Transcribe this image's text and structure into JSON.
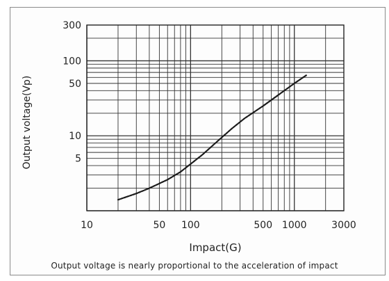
{
  "chart_data": {
    "type": "line",
    "title": "",
    "xlabel": "Impact(G)",
    "ylabel": "Output voltage(Vp)",
    "xscale": "log",
    "yscale": "log",
    "xlim": [
      10,
      3000
    ],
    "ylim": [
      1,
      300
    ],
    "x_ticks": [
      {
        "value": 10,
        "label": "10"
      },
      {
        "value": 50,
        "label": "50"
      },
      {
        "value": 100,
        "label": "100"
      },
      {
        "value": 500,
        "label": "500"
      },
      {
        "value": 1000,
        "label": "1000"
      },
      {
        "value": 3000,
        "label": "3000"
      }
    ],
    "y_ticks": [
      {
        "value": 300,
        "label": "300"
      },
      {
        "value": 100,
        "label": "100"
      },
      {
        "value": 50,
        "label": "50"
      },
      {
        "value": 10,
        "label": "10"
      },
      {
        "value": 5,
        "label": "5"
      }
    ],
    "grid": true,
    "series": [
      {
        "x": [
          20,
          30,
          40,
          60,
          80,
          100,
          130,
          170,
          250,
          330,
          500,
          700,
          1000,
          1300
        ],
        "y": [
          1.4,
          1.7,
          2.0,
          2.6,
          3.3,
          4.2,
          5.6,
          7.8,
          12.5,
          17,
          25,
          35,
          50,
          64
        ]
      }
    ]
  },
  "caption": "Output voltage is nearly proportional to the acceleration of impact"
}
